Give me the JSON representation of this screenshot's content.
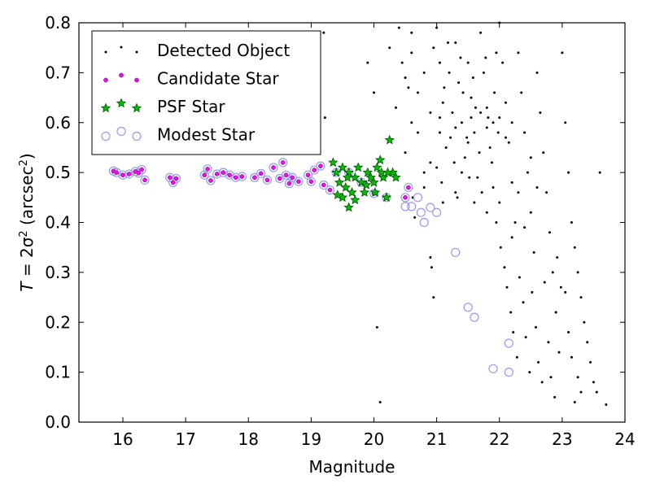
{
  "chart_data": {
    "type": "scatter",
    "title": "",
    "xlabel": "Magnitude",
    "ylabel_main": "T",
    "ylabel_eq": " = 2σ",
    "ylabel_sup": "2",
    "ylabel_unit": " (arcsec",
    "ylabel_unit_sup": "2",
    "ylabel_close": ")",
    "xlim": [
      15.3,
      24.0
    ],
    "ylim": [
      0.0,
      0.8
    ],
    "xticks": [
      16,
      17,
      18,
      19,
      20,
      21,
      22,
      23,
      24
    ],
    "yticks": [
      0.0,
      0.1,
      0.2,
      0.3,
      0.4,
      0.5,
      0.6,
      0.7,
      0.8
    ],
    "xtick_labels": [
      "16",
      "17",
      "18",
      "19",
      "20",
      "21",
      "22",
      "23",
      "24"
    ],
    "ytick_labels": [
      "0.0",
      "0.1",
      "0.2",
      "0.3",
      "0.4",
      "0.5",
      "0.6",
      "0.7",
      "0.8"
    ],
    "grid": false,
    "legend_position": "top-left",
    "colors": {
      "detected": "#000000",
      "candidate_fill": "#ff00ff",
      "psf_fill": "#00bb00",
      "psf_edge": "#005500",
      "modest_edge": "#9999ee"
    },
    "series": [
      {
        "name": "Detected Object",
        "marker": "dot",
        "points": [
          [
            19.2,
            0.78
          ],
          [
            19.22,
            0.61
          ],
          [
            19.9,
            0.72
          ],
          [
            20.0,
            0.66
          ],
          [
            20.0,
            0.46
          ],
          [
            20.05,
            0.19
          ],
          [
            20.1,
            0.04
          ],
          [
            20.4,
            0.79
          ],
          [
            20.6,
            0.78
          ],
          [
            20.62,
            0.45
          ],
          [
            20.65,
            0.41
          ],
          [
            20.8,
            0.47
          ],
          [
            20.8,
            0.5
          ],
          [
            20.9,
            0.33
          ],
          [
            20.92,
            0.31
          ],
          [
            20.95,
            0.25
          ],
          [
            21.1,
            0.44
          ],
          [
            21.3,
            0.46
          ],
          [
            20.25,
            0.75
          ],
          [
            20.35,
            0.63
          ],
          [
            20.5,
            0.54
          ],
          [
            20.7,
            0.58
          ],
          [
            20.8,
            0.7
          ],
          [
            20.9,
            0.62
          ],
          [
            20.5,
            0.69
          ],
          [
            20.6,
            0.74
          ],
          [
            20.7,
            0.66
          ],
          [
            20.95,
            0.75
          ],
          [
            20.9,
            0.52
          ],
          [
            20.6,
            0.6
          ],
          [
            20.45,
            0.72
          ],
          [
            20.55,
            0.67
          ],
          [
            21.0,
            0.79
          ],
          [
            21.05,
            0.72
          ],
          [
            21.1,
            0.64
          ],
          [
            21.05,
            0.58
          ],
          [
            21.15,
            0.55
          ],
          [
            21.2,
            0.7
          ],
          [
            21.25,
            0.62
          ],
          [
            21.3,
            0.76
          ],
          [
            21.35,
            0.68
          ],
          [
            21.4,
            0.6
          ],
          [
            21.45,
            0.53
          ],
          [
            21.5,
            0.72
          ],
          [
            21.55,
            0.65
          ],
          [
            21.6,
            0.58
          ],
          [
            21.65,
            0.49
          ],
          [
            21.7,
            0.78
          ],
          [
            21.75,
            0.7
          ],
          [
            21.8,
            0.63
          ],
          [
            21.85,
            0.55
          ],
          [
            21.9,
            0.47
          ],
          [
            21.95,
            0.74
          ],
          [
            21.0,
            0.51
          ],
          [
            21.08,
            0.48
          ],
          [
            21.12,
            0.67
          ],
          [
            21.18,
            0.76
          ],
          [
            21.22,
            0.57
          ],
          [
            21.28,
            0.52
          ],
          [
            21.33,
            0.45
          ],
          [
            21.38,
            0.73
          ],
          [
            21.42,
            0.66
          ],
          [
            21.48,
            0.57
          ],
          [
            21.52,
            0.49
          ],
          [
            21.58,
            0.69
          ],
          [
            21.62,
            0.63
          ],
          [
            21.68,
            0.54
          ],
          [
            21.72,
            0.46
          ],
          [
            21.78,
            0.73
          ],
          [
            21.82,
            0.61
          ],
          [
            21.88,
            0.52
          ],
          [
            21.92,
            0.66
          ],
          [
            21.98,
            0.58
          ],
          [
            22.0,
            0.8
          ],
          [
            22.05,
            0.72
          ],
          [
            22.1,
            0.64
          ],
          [
            22.15,
            0.56
          ],
          [
            22.2,
            0.48
          ],
          [
            22.25,
            0.4
          ],
          [
            22.3,
            0.74
          ],
          [
            22.35,
            0.66
          ],
          [
            22.4,
            0.58
          ],
          [
            22.45,
            0.5
          ],
          [
            22.5,
            0.42
          ],
          [
            22.55,
            0.34
          ],
          [
            22.6,
            0.7
          ],
          [
            22.65,
            0.62
          ],
          [
            22.7,
            0.54
          ],
          [
            22.75,
            0.46
          ],
          [
            22.8,
            0.38
          ],
          [
            22.85,
            0.3
          ],
          [
            22.9,
            0.22
          ],
          [
            22.95,
            0.14
          ],
          [
            22.02,
            0.35
          ],
          [
            22.08,
            0.31
          ],
          [
            22.12,
            0.27
          ],
          [
            22.18,
            0.22
          ],
          [
            22.22,
            0.18
          ],
          [
            22.28,
            0.13
          ],
          [
            22.32,
            0.29
          ],
          [
            22.38,
            0.24
          ],
          [
            22.42,
            0.17
          ],
          [
            22.48,
            0.1
          ],
          [
            22.52,
            0.26
          ],
          [
            22.58,
            0.19
          ],
          [
            22.62,
            0.12
          ],
          [
            22.68,
            0.08
          ],
          [
            22.72,
            0.28
          ],
          [
            22.78,
            0.16
          ],
          [
            22.82,
            0.09
          ],
          [
            22.88,
            0.05
          ],
          [
            22.92,
            0.33
          ],
          [
            22.98,
            0.27
          ],
          [
            23.0,
            0.74
          ],
          [
            23.05,
            0.6
          ],
          [
            23.1,
            0.5
          ],
          [
            23.15,
            0.4
          ],
          [
            23.2,
            0.35
          ],
          [
            23.25,
            0.3
          ],
          [
            23.3,
            0.25
          ],
          [
            23.35,
            0.2
          ],
          [
            23.4,
            0.16
          ],
          [
            23.45,
            0.12
          ],
          [
            23.5,
            0.08
          ],
          [
            23.55,
            0.06
          ],
          [
            23.7,
            0.035
          ],
          [
            23.6,
            0.5
          ],
          [
            23.2,
            0.04
          ],
          [
            23.25,
            0.09
          ],
          [
            23.1,
            0.18
          ],
          [
            23.05,
            0.26
          ],
          [
            23.15,
            0.13
          ],
          [
            23.3,
            0.06
          ],
          [
            21.05,
            0.61
          ],
          [
            21.3,
            0.59
          ],
          [
            21.55,
            0.61
          ],
          [
            21.8,
            0.59
          ],
          [
            22.0,
            0.61
          ],
          [
            22.2,
            0.6
          ],
          [
            22.1,
            0.57
          ],
          [
            21.9,
            0.6
          ],
          [
            21.7,
            0.62
          ],
          [
            21.5,
            0.56
          ],
          [
            21.4,
            0.5
          ],
          [
            21.6,
            0.44
          ],
          [
            21.8,
            0.42
          ],
          [
            22.0,
            0.44
          ],
          [
            22.3,
            0.46
          ],
          [
            22.5,
            0.53
          ],
          [
            22.6,
            0.47
          ],
          [
            22.4,
            0.39
          ],
          [
            22.2,
            0.37
          ],
          [
            21.95,
            0.4
          ]
        ]
      },
      {
        "name": "Candidate Star",
        "marker": "circle-magenta",
        "points": [
          [
            15.85,
            0.503
          ],
          [
            15.9,
            0.5
          ],
          [
            16.0,
            0.495
          ],
          [
            16.1,
            0.497
          ],
          [
            16.2,
            0.502
          ],
          [
            16.25,
            0.499
          ],
          [
            16.3,
            0.506
          ],
          [
            16.35,
            0.485
          ],
          [
            16.75,
            0.49
          ],
          [
            16.8,
            0.48
          ],
          [
            16.85,
            0.488
          ],
          [
            17.3,
            0.495
          ],
          [
            17.35,
            0.507
          ],
          [
            17.4,
            0.484
          ],
          [
            17.5,
            0.497
          ],
          [
            17.6,
            0.5
          ],
          [
            17.7,
            0.495
          ],
          [
            17.8,
            0.49
          ],
          [
            17.9,
            0.492
          ],
          [
            18.1,
            0.49
          ],
          [
            18.2,
            0.498
          ],
          [
            18.3,
            0.485
          ],
          [
            18.4,
            0.51
          ],
          [
            18.5,
            0.488
          ],
          [
            18.55,
            0.52
          ],
          [
            18.6,
            0.495
          ],
          [
            18.65,
            0.478
          ],
          [
            18.7,
            0.49
          ],
          [
            18.8,
            0.482
          ],
          [
            18.95,
            0.495
          ],
          [
            19.0,
            0.482
          ],
          [
            19.05,
            0.505
          ],
          [
            19.15,
            0.513
          ],
          [
            19.2,
            0.475
          ],
          [
            19.3,
            0.465
          ],
          [
            20.0,
            0.458
          ],
          [
            20.5,
            0.45
          ],
          [
            20.55,
            0.47
          ]
        ]
      },
      {
        "name": "PSF Star",
        "marker": "star",
        "points": [
          [
            19.35,
            0.52
          ],
          [
            19.4,
            0.5
          ],
          [
            19.45,
            0.48
          ],
          [
            19.5,
            0.51
          ],
          [
            19.55,
            0.47
          ],
          [
            19.6,
            0.5
          ],
          [
            19.65,
            0.46
          ],
          [
            19.7,
            0.49
          ],
          [
            19.75,
            0.51
          ],
          [
            19.8,
            0.48
          ],
          [
            19.85,
            0.46
          ],
          [
            19.9,
            0.5
          ],
          [
            19.95,
            0.49
          ],
          [
            20.0,
            0.48
          ],
          [
            20.05,
            0.51
          ],
          [
            20.1,
            0.525
          ],
          [
            20.15,
            0.49
          ],
          [
            20.2,
            0.45
          ],
          [
            20.25,
            0.565
          ],
          [
            20.3,
            0.5
          ],
          [
            20.35,
            0.49
          ],
          [
            19.5,
            0.45
          ],
          [
            19.6,
            0.43
          ],
          [
            19.7,
            0.445
          ],
          [
            19.42,
            0.455
          ],
          [
            19.58,
            0.49
          ],
          [
            19.88,
            0.475
          ],
          [
            20.02,
            0.46
          ],
          [
            20.12,
            0.5
          ],
          [
            20.22,
            0.5
          ]
        ]
      },
      {
        "name": "Modest Star",
        "marker": "open-circle",
        "points": [
          [
            15.85,
            0.503
          ],
          [
            15.9,
            0.5
          ],
          [
            16.0,
            0.495
          ],
          [
            16.1,
            0.497
          ],
          [
            16.2,
            0.502
          ],
          [
            16.25,
            0.499
          ],
          [
            16.3,
            0.506
          ],
          [
            16.35,
            0.485
          ],
          [
            16.75,
            0.49
          ],
          [
            16.8,
            0.48
          ],
          [
            16.85,
            0.488
          ],
          [
            17.3,
            0.495
          ],
          [
            17.35,
            0.507
          ],
          [
            17.4,
            0.484
          ],
          [
            17.5,
            0.497
          ],
          [
            17.6,
            0.5
          ],
          [
            17.7,
            0.495
          ],
          [
            17.8,
            0.49
          ],
          [
            17.9,
            0.492
          ],
          [
            18.1,
            0.49
          ],
          [
            18.2,
            0.498
          ],
          [
            18.3,
            0.485
          ],
          [
            18.4,
            0.51
          ],
          [
            18.5,
            0.488
          ],
          [
            18.55,
            0.52
          ],
          [
            18.6,
            0.495
          ],
          [
            18.65,
            0.478
          ],
          [
            18.7,
            0.49
          ],
          [
            18.8,
            0.482
          ],
          [
            18.95,
            0.495
          ],
          [
            19.0,
            0.482
          ],
          [
            19.05,
            0.505
          ],
          [
            19.15,
            0.513
          ],
          [
            19.2,
            0.475
          ],
          [
            19.3,
            0.465
          ],
          [
            19.4,
            0.5
          ],
          [
            19.6,
            0.5
          ],
          [
            19.8,
            0.48
          ],
          [
            20.0,
            0.458
          ],
          [
            20.2,
            0.45
          ],
          [
            20.5,
            0.45
          ],
          [
            20.55,
            0.47
          ],
          [
            20.5,
            0.432
          ],
          [
            20.6,
            0.432
          ],
          [
            20.7,
            0.45
          ],
          [
            20.75,
            0.42
          ],
          [
            20.8,
            0.4
          ],
          [
            20.9,
            0.43
          ],
          [
            21.0,
            0.42
          ],
          [
            21.3,
            0.34
          ],
          [
            21.5,
            0.23
          ],
          [
            21.6,
            0.21
          ],
          [
            21.9,
            0.107
          ],
          [
            22.15,
            0.1
          ],
          [
            22.15,
            0.158
          ]
        ]
      }
    ]
  }
}
